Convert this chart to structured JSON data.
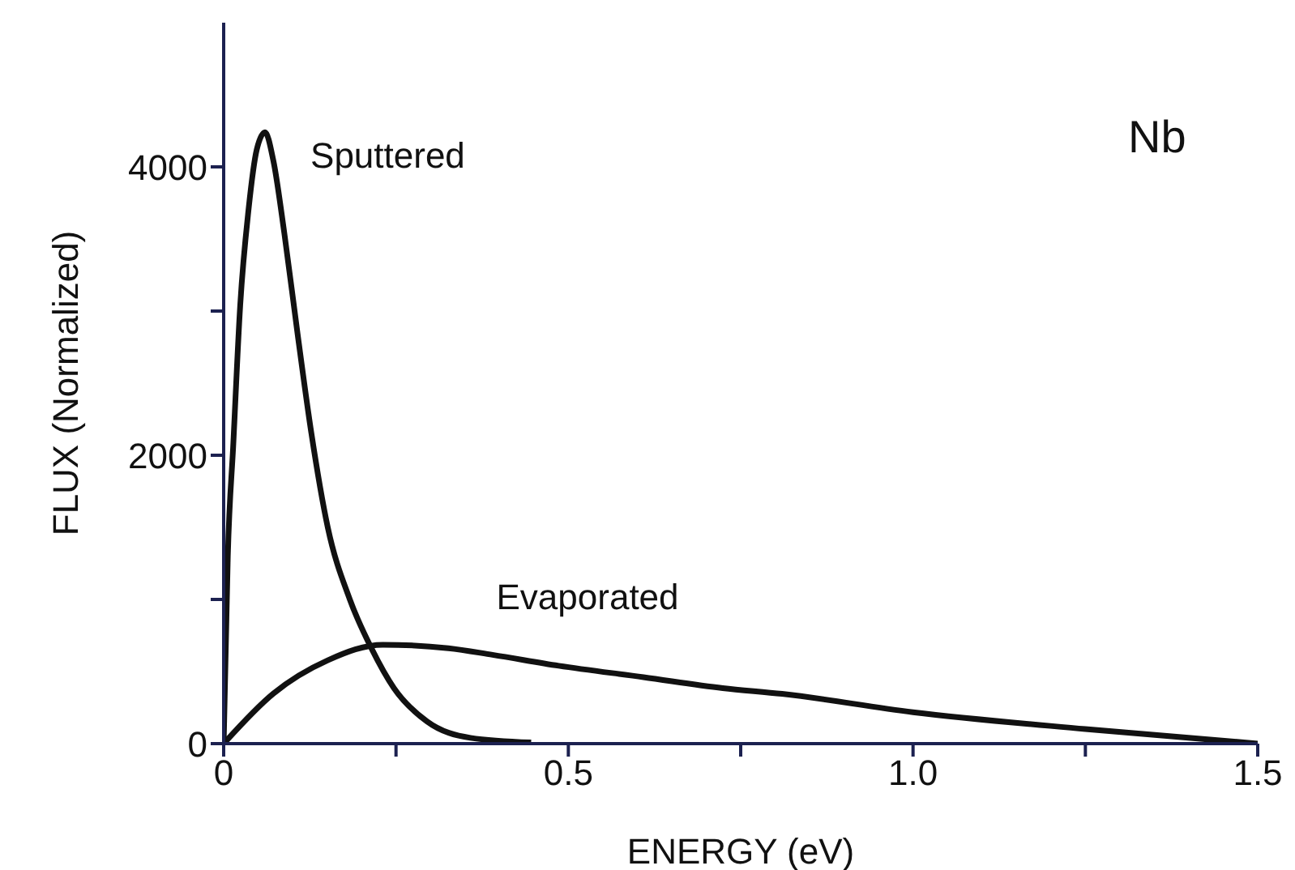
{
  "chart_data": {
    "type": "line",
    "xlabel": "ENERGY (eV)",
    "ylabel": "FLUX (Normalized)",
    "annotations": [
      "Nb"
    ],
    "marker": "none",
    "line_style": "solid",
    "xlim": [
      0,
      1.5
    ],
    "ylim": [
      0,
      5000
    ],
    "xticks": [
      0,
      {
        "value": 0.25,
        "label": null
      },
      0.5,
      {
        "value": 0.75,
        "label": null
      },
      "1.0",
      {
        "value": 1.25,
        "label": null
      },
      1.5
    ],
    "yticks": [
      0,
      {
        "value": 1000,
        "label": null
      },
      2000,
      {
        "value": 3000,
        "label": null
      },
      4000
    ],
    "series": [
      {
        "name": "Sputtered",
        "color": "#111111",
        "x": [
          0,
          0.006,
          0.014,
          0.024,
          0.036,
          0.048,
          0.06,
          0.072,
          0.088,
          0.107,
          0.127,
          0.151,
          0.183,
          0.215,
          0.247,
          0.295,
          0.358,
          0.446
        ],
        "values": [
          0,
          1300,
          2080,
          3040,
          3700,
          4120,
          4240,
          4045,
          3540,
          2850,
          2160,
          1500,
          1000,
          655,
          385,
          154,
          40,
          8
        ]
      },
      {
        "name": "Evaporated",
        "color": "#111111",
        "x": [
          0,
          0.072,
          0.151,
          0.231,
          0.326,
          0.39,
          0.486,
          0.609,
          0.724,
          0.81,
          1.0,
          1.25,
          1.5
        ],
        "values": [
          0,
          347,
          578,
          686,
          662,
          616,
          540,
          461,
          385,
          345,
          218,
          101,
          0
        ]
      }
    ]
  }
}
